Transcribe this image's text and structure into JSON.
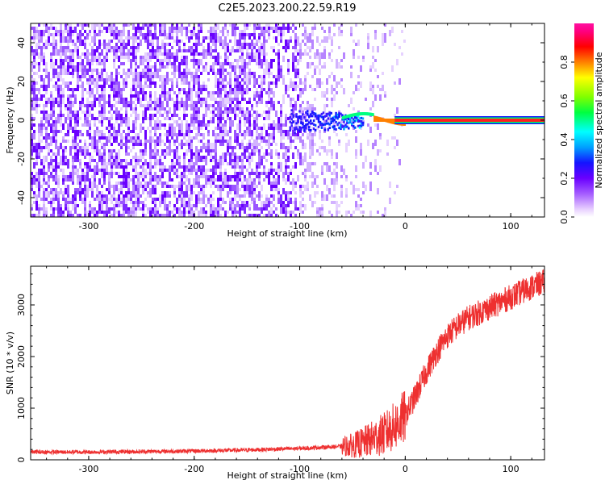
{
  "title": "C2E5.2023.200.22.59.R19",
  "colors": {
    "snr_line": "#ee3030",
    "colormap": [
      "#ffffff",
      "#e8d0ff",
      "#a55cff",
      "#6a00ff",
      "#1414ff",
      "#00a0ff",
      "#00ffff",
      "#00ff40",
      "#80ff00",
      "#ffff00",
      "#ff8000",
      "#ff0000",
      "#ff0080",
      "#ff10a0"
    ]
  },
  "chart_data": [
    {
      "type": "heatmap",
      "xlabel": "Height of straight line (km)",
      "ylabel": "Frequency (Hz)",
      "xlim": [
        -355,
        132
      ],
      "ylim": [
        -50,
        50
      ],
      "xticks": [
        -300,
        -200,
        -100,
        0,
        100
      ],
      "xtick_labels": [
        "-300",
        "-200",
        "-100",
        "0",
        "100"
      ],
      "yticks": [
        -40,
        -20,
        0,
        20,
        40
      ],
      "ytick_labels": [
        "-40",
        "-20",
        "0",
        "20",
        "40"
      ],
      "colorbar": {
        "label": "Normalized spectral amplitude",
        "range": [
          0,
          1
        ],
        "ticks": [
          0.0,
          0.2,
          0.4,
          0.6,
          0.8
        ],
        "tick_labels": [
          "0.0",
          "0.2",
          "0.4",
          "0.6",
          "0.8"
        ]
      },
      "description_values": {
        "noise_region_x": [
          -355,
          -55
        ],
        "noise_region_freq": [
          -50,
          50
        ],
        "signal_freq": 0,
        "signal_start_x": -110,
        "signal_strong_from_x": 0
      }
    },
    {
      "type": "line",
      "xlabel": "Height of straight line (km)",
      "ylabel": "SNR (10 * v/v)",
      "xlim": [
        -355,
        132
      ],
      "ylim": [
        0,
        3750
      ],
      "xticks": [
        -300,
        -200,
        -100,
        0,
        100
      ],
      "xtick_labels": [
        "-300",
        "-200",
        "-100",
        "0",
        "100"
      ],
      "yticks": [
        0,
        1000,
        2000,
        3000
      ],
      "ytick_labels": [
        "0",
        "1000",
        "2000",
        "3000"
      ],
      "series": [
        {
          "x": [
            -355,
            -300,
            -250,
            -200,
            -150,
            -100,
            -80,
            -60,
            -50,
            -40,
            -30,
            -20,
            -10,
            0,
            10,
            20,
            30,
            40,
            50,
            60,
            70,
            80,
            90,
            100,
            110,
            120,
            132
          ],
          "y": [
            150,
            150,
            160,
            170,
            190,
            220,
            240,
            260,
            280,
            330,
            420,
            500,
            650,
            850,
            1250,
            1700,
            2100,
            2400,
            2600,
            2750,
            2850,
            2950,
            3050,
            3150,
            3250,
            3350,
            3450
          ]
        }
      ]
    }
  ]
}
